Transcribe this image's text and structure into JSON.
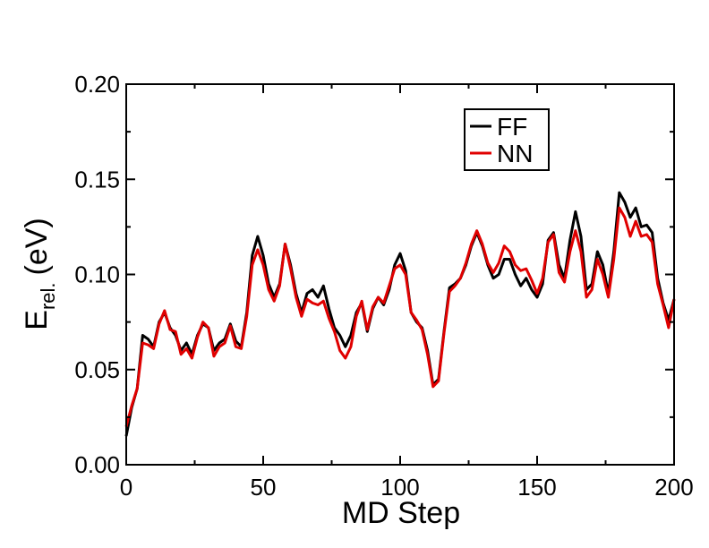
{
  "chart_data": {
    "type": "line",
    "xlabel": "MD Step",
    "ylabel": {
      "main": "E",
      "sub": "rel.",
      "unit": "(eV)"
    },
    "x": [
      0,
      2,
      4,
      6,
      8,
      10,
      12,
      14,
      16,
      18,
      20,
      22,
      24,
      26,
      28,
      30,
      32,
      34,
      36,
      38,
      40,
      42,
      44,
      46,
      48,
      50,
      52,
      54,
      56,
      58,
      60,
      62,
      64,
      66,
      68,
      70,
      72,
      74,
      76,
      78,
      80,
      82,
      84,
      86,
      88,
      90,
      92,
      94,
      96,
      98,
      100,
      102,
      104,
      106,
      108,
      110,
      112,
      114,
      116,
      118,
      120,
      122,
      124,
      126,
      128,
      130,
      132,
      134,
      136,
      138,
      140,
      142,
      144,
      146,
      148,
      150,
      152,
      154,
      156,
      158,
      160,
      162,
      164,
      166,
      168,
      170,
      172,
      174,
      176,
      178,
      180,
      182,
      184,
      186,
      188,
      190,
      192,
      194,
      196,
      198,
      200
    ],
    "series": [
      {
        "name": "FF",
        "color": "#000000",
        "values": [
          0.015,
          0.03,
          0.04,
          0.068,
          0.066,
          0.062,
          0.075,
          0.08,
          0.072,
          0.068,
          0.06,
          0.064,
          0.058,
          0.068,
          0.074,
          0.072,
          0.06,
          0.064,
          0.066,
          0.074,
          0.065,
          0.062,
          0.08,
          0.11,
          0.12,
          0.11,
          0.095,
          0.088,
          0.095,
          0.116,
          0.105,
          0.09,
          0.08,
          0.09,
          0.092,
          0.088,
          0.094,
          0.082,
          0.072,
          0.068,
          0.062,
          0.068,
          0.08,
          0.085,
          0.07,
          0.082,
          0.088,
          0.084,
          0.092,
          0.105,
          0.111,
          0.102,
          0.08,
          0.075,
          0.072,
          0.06,
          0.042,
          0.045,
          0.07,
          0.093,
          0.095,
          0.098,
          0.105,
          0.115,
          0.122,
          0.115,
          0.105,
          0.098,
          0.1,
          0.108,
          0.108,
          0.1,
          0.094,
          0.098,
          0.092,
          0.088,
          0.095,
          0.118,
          0.122,
          0.105,
          0.098,
          0.118,
          0.133,
          0.12,
          0.092,
          0.095,
          0.112,
          0.105,
          0.09,
          0.112,
          0.143,
          0.138,
          0.13,
          0.135,
          0.125,
          0.126,
          0.122,
          0.098,
          0.085,
          0.076,
          0.087
        ]
      },
      {
        "name": "NN",
        "color": "#e00000",
        "values": [
          0.02,
          0.031,
          0.04,
          0.064,
          0.063,
          0.061,
          0.074,
          0.081,
          0.071,
          0.07,
          0.058,
          0.061,
          0.056,
          0.067,
          0.075,
          0.072,
          0.057,
          0.062,
          0.064,
          0.073,
          0.062,
          0.061,
          0.078,
          0.105,
          0.113,
          0.105,
          0.092,
          0.086,
          0.094,
          0.116,
          0.103,
          0.088,
          0.078,
          0.087,
          0.085,
          0.084,
          0.086,
          0.077,
          0.07,
          0.06,
          0.056,
          0.062,
          0.078,
          0.086,
          0.071,
          0.083,
          0.088,
          0.085,
          0.094,
          0.103,
          0.105,
          0.1,
          0.08,
          0.076,
          0.071,
          0.058,
          0.041,
          0.044,
          0.069,
          0.091,
          0.094,
          0.098,
          0.106,
          0.116,
          0.123,
          0.116,
          0.106,
          0.101,
          0.106,
          0.115,
          0.112,
          0.105,
          0.102,
          0.103,
          0.097,
          0.09,
          0.098,
          0.117,
          0.121,
          0.101,
          0.096,
          0.112,
          0.123,
          0.112,
          0.088,
          0.092,
          0.108,
          0.1,
          0.088,
          0.108,
          0.135,
          0.13,
          0.12,
          0.128,
          0.12,
          0.121,
          0.117,
          0.095,
          0.084,
          0.072,
          0.087
        ]
      }
    ],
    "xlim": [
      0,
      200
    ],
    "xticks": [
      0,
      50,
      100,
      150,
      200
    ],
    "xminorticks": [
      25,
      75,
      125,
      175
    ],
    "ylim": [
      0,
      0.2
    ],
    "yticks": [
      {
        "value": 0,
        "label": "0.00"
      },
      {
        "value": 0.05,
        "label": "0.05"
      },
      {
        "value": 0.1,
        "label": "0.10"
      },
      {
        "value": 0.15,
        "label": "0.15"
      },
      {
        "value": 0.2,
        "label": "0.20"
      }
    ],
    "yminorticks": [
      0.025,
      0.075,
      0.125,
      0.175
    ],
    "grid": false,
    "legend": "upper right"
  }
}
